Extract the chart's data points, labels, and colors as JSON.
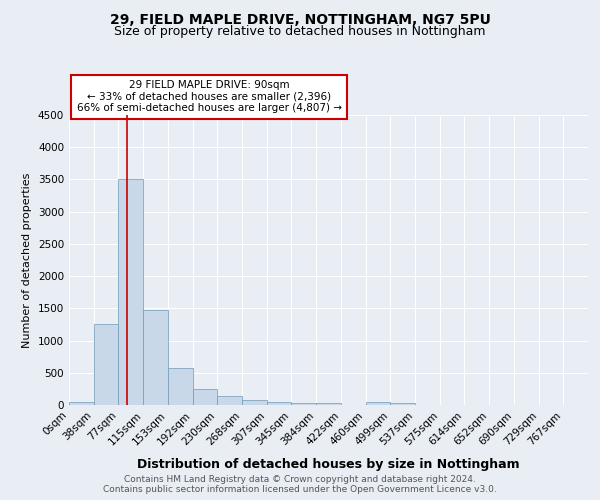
{
  "title1": "29, FIELD MAPLE DRIVE, NOTTINGHAM, NG7 5PU",
  "title2": "Size of property relative to detached houses in Nottingham",
  "xlabel": "Distribution of detached houses by size in Nottingham",
  "ylabel": "Number of detached properties",
  "bin_labels": [
    "0sqm",
    "38sqm",
    "77sqm",
    "115sqm",
    "153sqm",
    "192sqm",
    "230sqm",
    "268sqm",
    "307sqm",
    "345sqm",
    "384sqm",
    "422sqm",
    "460sqm",
    "499sqm",
    "537sqm",
    "575sqm",
    "614sqm",
    "652sqm",
    "690sqm",
    "729sqm",
    "767sqm"
  ],
  "bar_values": [
    50,
    1250,
    3500,
    1480,
    570,
    250,
    140,
    80,
    50,
    30,
    30,
    5,
    50,
    30,
    5,
    0,
    0,
    0,
    0,
    0,
    0
  ],
  "bar_color": "#c8d8e8",
  "bar_edge_color": "#7098b8",
  "vline_color": "#cc0000",
  "annotation_title": "29 FIELD MAPLE DRIVE: 90sqm",
  "annotation_line1": "← 33% of detached houses are smaller (2,396)",
  "annotation_line2": "66% of semi-detached houses are larger (4,807) →",
  "annotation_box_color": "#ffffff",
  "annotation_box_edge": "#cc0000",
  "ylim": [
    0,
    4500
  ],
  "yticks": [
    0,
    500,
    1000,
    1500,
    2000,
    2500,
    3000,
    3500,
    4000,
    4500
  ],
  "bg_color": "#e8eef4",
  "footer1": "Contains HM Land Registry data © Crown copyright and database right 2024.",
  "footer2": "Contains public sector information licensed under the Open Government Licence v3.0.",
  "title1_fontsize": 10,
  "title2_fontsize": 9,
  "xlabel_fontsize": 9,
  "ylabel_fontsize": 8,
  "tick_fontsize": 7.5,
  "annotation_fontsize": 7.5,
  "footer_fontsize": 6.5
}
